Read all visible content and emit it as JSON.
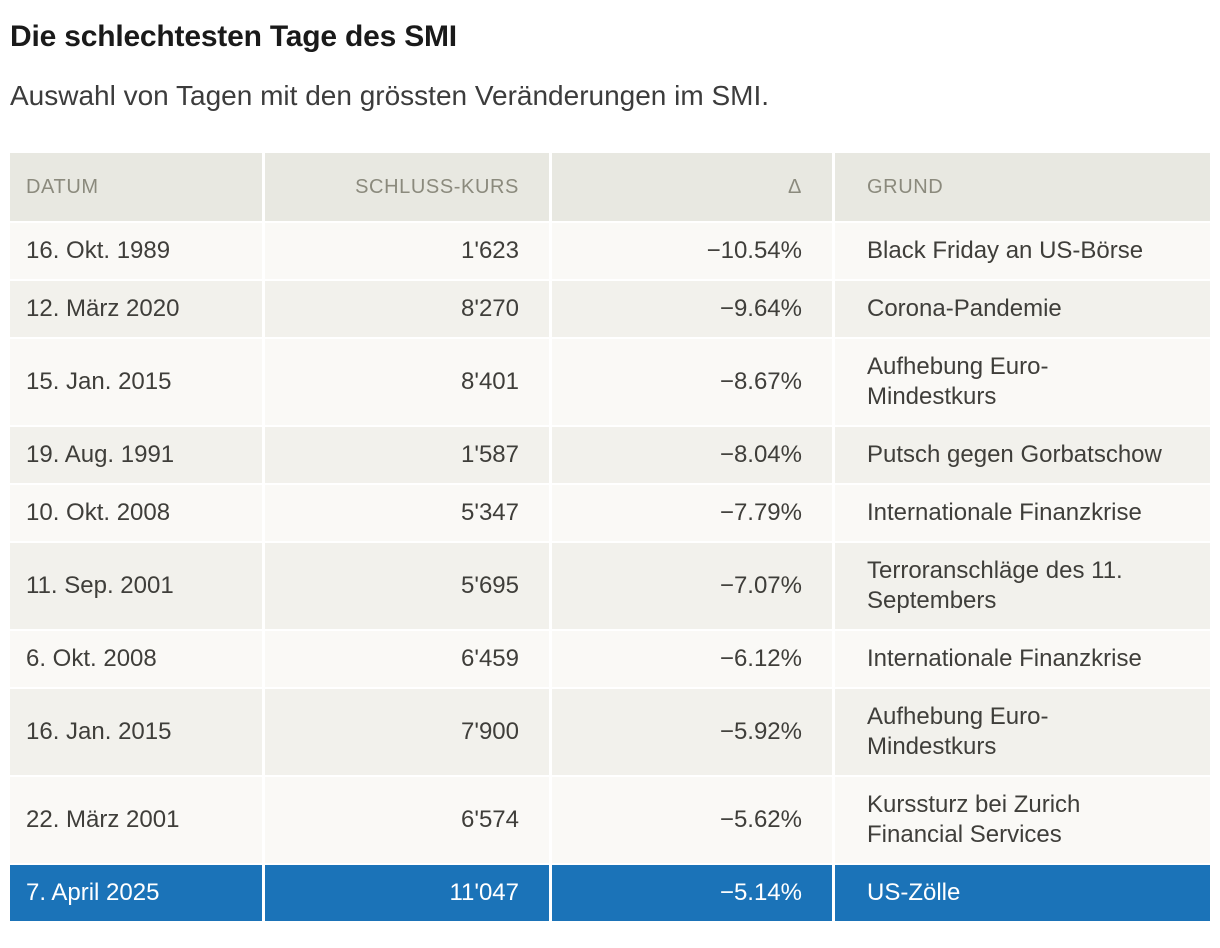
{
  "header": {
    "title": "Die schlechtesten Tage des SMI",
    "subtitle": "Auswahl von Tagen mit den grössten Veränderungen im SMI."
  },
  "colors": {
    "highlight": "#1b73b8",
    "highlight_text": "#ffffff",
    "header_bg": "#e8e8e1",
    "header_text": "#8b8a7d",
    "row_light": "#faf9f6",
    "row_shaded": "#f2f1ec",
    "body_text": "#3f3e3a",
    "title_text": "#1a1a1a",
    "subtitle_text": "#3c3c3c"
  },
  "chart_data": {
    "type": "table",
    "title": "Die schlechtesten Tage des SMI",
    "subtitle": "Auswahl von Tagen mit den grössten Veränderungen im SMI.",
    "columns": [
      {
        "key": "datum",
        "label": "DATUM",
        "align": "left"
      },
      {
        "key": "schlusskurs",
        "label": "SCHLUSS-KURS",
        "align": "right"
      },
      {
        "key": "delta",
        "label": "Δ",
        "align": "right"
      },
      {
        "key": "grund",
        "label": "GRUND",
        "align": "left"
      }
    ],
    "rows": [
      {
        "datum": "16. Okt. 1989",
        "schlusskurs": "1'623",
        "delta": "−10.54%",
        "grund": "Black Friday an US-Börse",
        "highlighted": false
      },
      {
        "datum": "12. März 2020",
        "schlusskurs": "8'270",
        "delta": "−9.64%",
        "grund": "Corona-Pandemie",
        "highlighted": false
      },
      {
        "datum": "15. Jan. 2015",
        "schlusskurs": "8'401",
        "delta": "−8.67%",
        "grund": "Aufhebung Euro-\nMindestkurs",
        "highlighted": false
      },
      {
        "datum": "19. Aug. 1991",
        "schlusskurs": "1'587",
        "delta": "−8.04%",
        "grund": "Putsch gegen Gorbatschow",
        "highlighted": false
      },
      {
        "datum": "10. Okt. 2008",
        "schlusskurs": "5'347",
        "delta": "−7.79%",
        "grund": "Internationale Finanzkrise",
        "highlighted": false
      },
      {
        "datum": "11. Sep. 2001",
        "schlusskurs": "5'695",
        "delta": "−7.07%",
        "grund": "Terroranschläge des 11.\nSeptembers",
        "highlighted": false
      },
      {
        "datum": "6. Okt. 2008",
        "schlusskurs": "6'459",
        "delta": "−6.12%",
        "grund": "Internationale Finanzkrise",
        "highlighted": false
      },
      {
        "datum": "16. Jan. 2015",
        "schlusskurs": "7'900",
        "delta": "−5.92%",
        "grund": "Aufhebung Euro-\nMindestkurs",
        "highlighted": false
      },
      {
        "datum": "22. März 2001",
        "schlusskurs": "6'574",
        "delta": "−5.62%",
        "grund": "Kurssturz bei Zurich\nFinancial Services",
        "highlighted": false
      },
      {
        "datum": "7. April 2025",
        "schlusskurs": "11'047",
        "delta": "−5.14%",
        "grund": "US-Zölle",
        "highlighted": true
      }
    ],
    "highlighted_row": "7. April 2025",
    "layout": {
      "grid": false,
      "header_row": true,
      "zebra_striping": true
    }
  }
}
